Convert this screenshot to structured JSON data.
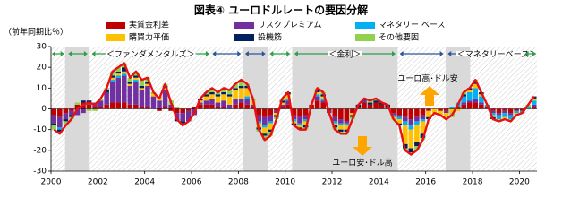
{
  "chart_data": {
    "type": "stacked_bar_line",
    "title": "図表④ ユーロドルレートの要因分解",
    "y_label": "（前年同期比％）",
    "xlim": [
      2000,
      2020.75
    ],
    "xticks": [
      2000,
      2002,
      2004,
      2006,
      2008,
      2010,
      2012,
      2014,
      2016,
      2018,
      2020
    ],
    "ylim": [
      -30,
      30
    ],
    "yticks": [
      -30,
      -20,
      -10,
      0,
      10,
      20,
      30
    ],
    "x": [
      2000,
      2000.25,
      2000.5,
      2000.75,
      2001,
      2001.25,
      2001.5,
      2001.75,
      2002,
      2002.25,
      2002.5,
      2002.75,
      2003,
      2003.25,
      2003.5,
      2003.75,
      2004,
      2004.25,
      2004.5,
      2004.75,
      2005,
      2005.25,
      2005.5,
      2005.75,
      2006,
      2006.25,
      2006.5,
      2006.75,
      2007,
      2007.25,
      2007.5,
      2007.75,
      2008,
      2008.25,
      2008.5,
      2008.75,
      2009,
      2009.25,
      2009.5,
      2009.75,
      2010,
      2010.25,
      2010.5,
      2010.75,
      2011,
      2011.25,
      2011.5,
      2011.75,
      2012,
      2012.25,
      2012.5,
      2012.75,
      2013,
      2013.25,
      2013.5,
      2013.75,
      2014,
      2014.25,
      2014.5,
      2014.75,
      2015,
      2015.25,
      2015.5,
      2015.75,
      2016,
      2016.25,
      2016.5,
      2016.75,
      2017,
      2017.25,
      2017.5,
      2017.75,
      2018,
      2018.25,
      2018.5,
      2018.75,
      2019,
      2019.25,
      2019.5,
      2019.75,
      2020,
      2020.25,
      2020.5
    ],
    "series": [
      {
        "name": "実質金利差",
        "color": "#c00000",
        "values": [
          -3,
          -4,
          -2,
          -1,
          2,
          3,
          2,
          1,
          1,
          2,
          3,
          3,
          3,
          2,
          2,
          1,
          1,
          0,
          -1,
          1,
          -1,
          -2,
          -2,
          -1,
          1,
          2,
          2,
          2,
          1,
          1,
          0,
          2,
          3,
          2,
          1,
          -3,
          -4,
          -3,
          -1,
          1,
          2,
          -3,
          -4,
          -3,
          2,
          4,
          3,
          -1,
          -4,
          -5,
          -6,
          -2,
          1,
          3,
          2,
          3,
          2,
          1,
          -2,
          -3,
          -4,
          -5,
          -4,
          -3,
          -1,
          0,
          -1,
          -1,
          0,
          1,
          2,
          3,
          3,
          2,
          1,
          -1,
          -2,
          -1,
          -2,
          -1,
          -1,
          0,
          1
        ]
      },
      {
        "name": "リスクプレミアム",
        "color": "#7030a0",
        "values": [
          -4,
          -5,
          -3,
          -2,
          -3,
          -2,
          1,
          2,
          3,
          6,
          10,
          12,
          13,
          9,
          11,
          8,
          10,
          6,
          4,
          8,
          2,
          -3,
          -4,
          -5,
          -3,
          1,
          2,
          3,
          2,
          3,
          2,
          3,
          2,
          3,
          1,
          -3,
          -4,
          -3,
          -1,
          1,
          2,
          -2,
          -3,
          -2,
          0,
          2,
          1,
          -1,
          -2,
          -2,
          -1,
          0,
          0,
          1,
          0,
          0,
          0,
          0,
          -1,
          -1,
          -2,
          -3,
          -2,
          -2,
          0,
          0,
          0,
          -1,
          0,
          0,
          1,
          1,
          2,
          1,
          0,
          -1,
          -1,
          -1,
          -1,
          0,
          0,
          0,
          1
        ]
      },
      {
        "name": "マネタリー ベース",
        "color": "#00b0f0",
        "values": [
          0,
          -1,
          0,
          0,
          0,
          0,
          0,
          0,
          0,
          0,
          1,
          1,
          1,
          0,
          1,
          0,
          0,
          0,
          0,
          0,
          0,
          0,
          0,
          0,
          0,
          0,
          0,
          0,
          0,
          0,
          0,
          0,
          0,
          1,
          0,
          -1,
          -1,
          -1,
          0,
          0,
          1,
          -1,
          -1,
          -1,
          0,
          1,
          1,
          0,
          -1,
          -1,
          -1,
          0,
          0,
          0,
          0,
          0,
          0,
          0,
          -1,
          -1,
          -2,
          -2,
          -2,
          -1,
          0,
          0,
          0,
          0,
          1,
          2,
          3,
          4,
          5,
          3,
          1,
          -1,
          -2,
          -2,
          -2,
          -1,
          -1,
          1,
          2
        ]
      },
      {
        "name": "購買力平価",
        "color": "#ffc000",
        "values": [
          0,
          0,
          0,
          0,
          0,
          0,
          0,
          0,
          0,
          0,
          1,
          1,
          1,
          1,
          1,
          1,
          1,
          1,
          1,
          1,
          0,
          0,
          0,
          0,
          0,
          1,
          2,
          2,
          3,
          3,
          4,
          4,
          5,
          4,
          2,
          -2,
          -3,
          -3,
          -1,
          1,
          2,
          -1,
          -1,
          -2,
          0,
          1,
          1,
          0,
          -1,
          -2,
          -2,
          -1,
          0,
          0,
          0,
          0,
          0,
          0,
          -1,
          -2,
          -9,
          -9,
          -8,
          -6,
          -3,
          -2,
          -2,
          -2,
          -2,
          -1,
          0,
          1,
          2,
          1,
          0,
          -1,
          -1,
          -1,
          -1,
          -1,
          0,
          0,
          1
        ]
      },
      {
        "name": "投機筋",
        "color": "#002060",
        "values": [
          -1,
          -1,
          -1,
          -1,
          0,
          1,
          1,
          0,
          0,
          1,
          1,
          1,
          2,
          1,
          1,
          1,
          1,
          0,
          0,
          1,
          0,
          -1,
          -1,
          0,
          0,
          1,
          1,
          1,
          1,
          1,
          1,
          1,
          1,
          1,
          0,
          -1,
          -1,
          -1,
          -1,
          1,
          1,
          -1,
          -1,
          -1,
          0,
          1,
          1,
          0,
          -1,
          -1,
          -1,
          -1,
          1,
          1,
          1,
          1,
          1,
          1,
          0,
          -1,
          -2,
          -2,
          -2,
          -2,
          -1,
          0,
          0,
          0,
          0,
          0,
          1,
          1,
          1,
          1,
          0,
          -1,
          0,
          0,
          0,
          0,
          0,
          0,
          1
        ]
      },
      {
        "name": "その他要因",
        "color": "#92d050",
        "values": [
          -2,
          -1,
          -2,
          -1,
          1,
          0,
          -1,
          -1,
          1,
          1,
          2,
          2,
          2,
          2,
          2,
          3,
          2,
          1,
          1,
          1,
          2,
          1,
          -1,
          0,
          0,
          0,
          1,
          2,
          1,
          2,
          2,
          2,
          3,
          1,
          1,
          -1,
          -2,
          -2,
          -1,
          1,
          0,
          0,
          0,
          -1,
          0,
          1,
          1,
          0,
          -1,
          -1,
          -1,
          -1,
          0,
          0,
          1,
          1,
          0,
          0,
          0,
          0,
          -1,
          -1,
          -2,
          -1,
          0,
          0,
          0,
          0,
          -2,
          0,
          1,
          0,
          1,
          0,
          0,
          0,
          0,
          0,
          0,
          0,
          0,
          1,
          0
        ]
      }
    ],
    "line": {
      "color": "#e81010",
      "values": [
        -10,
        -12,
        -8,
        -5,
        0,
        2,
        3,
        2,
        5,
        10,
        18,
        20,
        22,
        15,
        18,
        14,
        15,
        8,
        5,
        12,
        3,
        -5,
        -8,
        -6,
        -2,
        5,
        8,
        10,
        8,
        10,
        9,
        12,
        14,
        12,
        5,
        -10,
        -15,
        -13,
        -5,
        5,
        8,
        -8,
        -10,
        -10,
        2,
        10,
        8,
        -2,
        -10,
        -12,
        -12,
        -5,
        2,
        5,
        4,
        5,
        3,
        2,
        -5,
        -8,
        -20,
        -22,
        -20,
        -15,
        -5,
        -2,
        -3,
        -5,
        -3,
        2,
        8,
        10,
        14,
        8,
        2,
        -5,
        -6,
        -5,
        -6,
        -3,
        -2,
        2,
        6
      ]
    },
    "shaded_periods": [
      [
        2000.6,
        2001.65
      ],
      [
        2008.2,
        2009.25
      ],
      [
        2010.3,
        2014.8
      ],
      [
        2016.85,
        2017.9
      ]
    ],
    "regimes": [
      {
        "start": 2000,
        "end": 2000.6,
        "color": "#2e9e48"
      },
      {
        "start": 2000.7,
        "end": 2001.6,
        "color": "#2e9e48"
      },
      {
        "start": 2001.7,
        "end": 2006.8,
        "color": "#2e9e48",
        "label": "＜ファンダメンタルズ＞"
      },
      {
        "start": 2006.85,
        "end": 2008.15,
        "color": "#2f5597"
      },
      {
        "start": 2008.25,
        "end": 2009.2,
        "color": "#2f5597"
      },
      {
        "start": 2009.3,
        "end": 2010.25,
        "color": "#2e9e48"
      },
      {
        "start": 2010.35,
        "end": 2014.75,
        "color": "#2e9e48",
        "label": "＜金利＞"
      },
      {
        "start": 2014.85,
        "end": 2016.8,
        "color": "#2f5597"
      },
      {
        "start": 2016.9,
        "end": 2017.85,
        "color": "#2f5597"
      },
      {
        "start": 2017.95,
        "end": 2020.15,
        "color": "#2f5597",
        "label": "＜マネタリーベース＞"
      },
      {
        "start": 2020.2,
        "end": 2020.75,
        "color": "#2e9e48"
      }
    ],
    "annotations": [
      "ユーロ高･ドル安",
      "ユーロ安･ドル高"
    ],
    "annotation_arrow_color": "#ffa500"
  }
}
